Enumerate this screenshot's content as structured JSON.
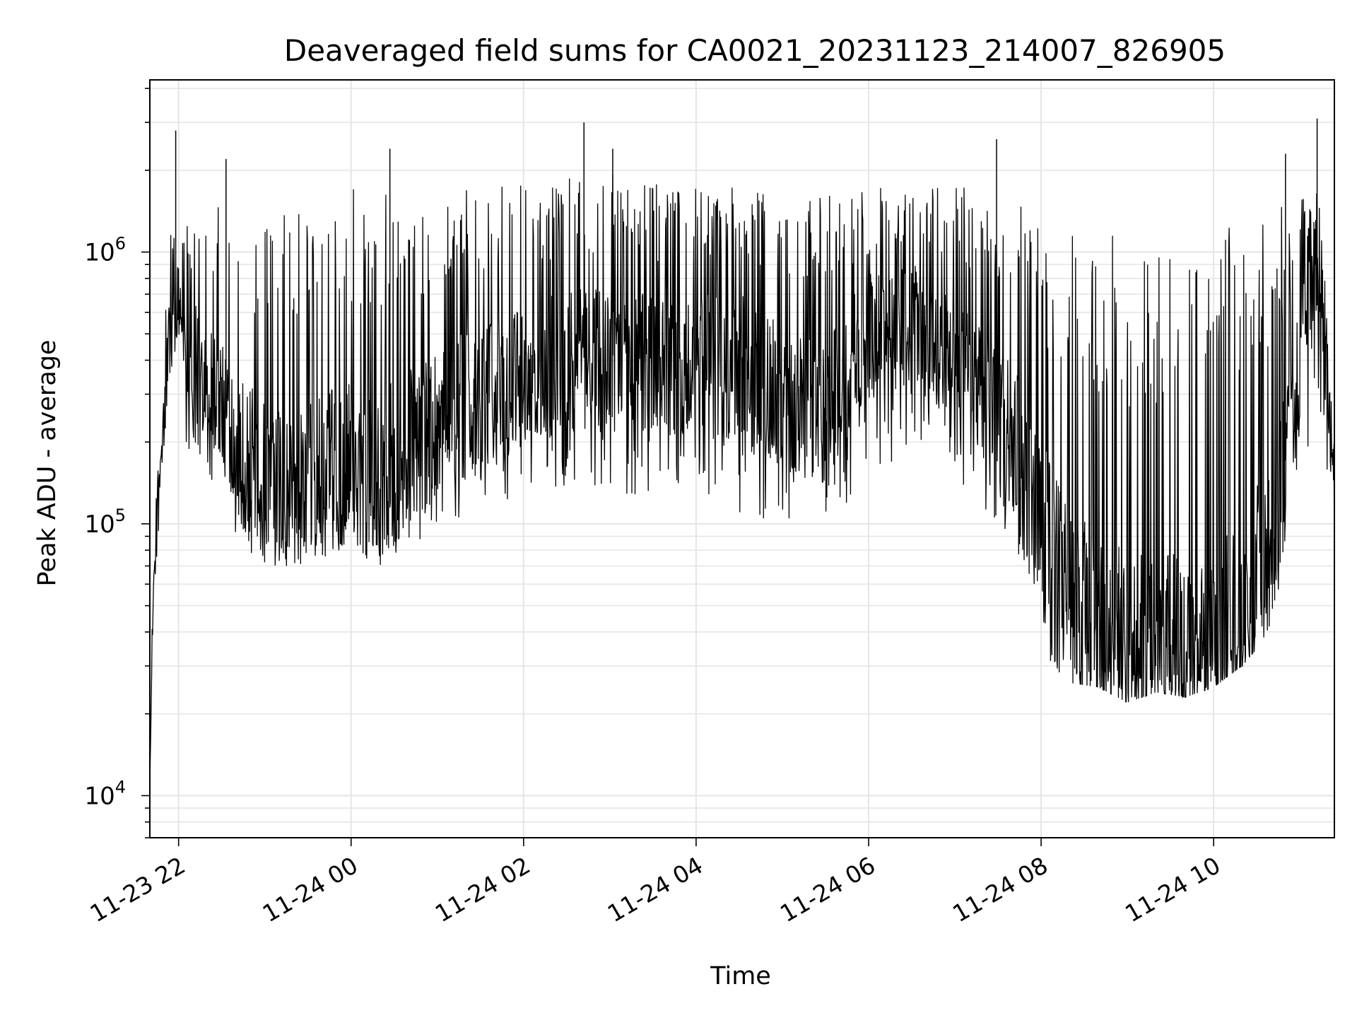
{
  "chart_data": {
    "type": "line",
    "title": "Deaveraged field sums for CA0021_20231123_214007_826905",
    "xlabel": "Time",
    "ylabel": "Peak ADU - average",
    "yscale": "log",
    "ylim": [
      7000,
      4300000
    ],
    "xlim": [
      "2023-11-23 21:40",
      "2023-11-24 11:24"
    ],
    "grid": true,
    "line_color": "#000000",
    "grid_color": "#e5e5e5",
    "x_ticks": [
      {
        "value": "2023-11-23 22:00",
        "label": "11-23 22"
      },
      {
        "value": "2023-11-24 00:00",
        "label": "11-24 00"
      },
      {
        "value": "2023-11-24 02:00",
        "label": "11-24 02"
      },
      {
        "value": "2023-11-24 04:00",
        "label": "11-24 04"
      },
      {
        "value": "2023-11-24 06:00",
        "label": "11-24 06"
      },
      {
        "value": "2023-11-24 08:00",
        "label": "11-24 08"
      },
      {
        "value": "2023-11-24 10:00",
        "label": "11-24 10"
      }
    ],
    "y_ticks": [
      {
        "value": 10000,
        "base": "10",
        "exp": "4"
      },
      {
        "value": 100000,
        "base": "10",
        "exp": "5"
      },
      {
        "value": 1000000,
        "base": "10",
        "exp": "6"
      }
    ],
    "series": [
      {
        "x": [
          "2023-11-23 21:40",
          "2023-11-23 21:42",
          "2023-11-23 21:45",
          "2023-11-23 21:48",
          "2023-11-23 21:52",
          "2023-11-23 21:55",
          "2023-11-23 21:58",
          "2023-11-23 22:05",
          "2023-11-23 22:15",
          "2023-11-23 22:30",
          "2023-11-23 22:45",
          "2023-11-23 23:00",
          "2023-11-23 23:20",
          "2023-11-23 23:40",
          "2023-11-24 00:00",
          "2023-11-24 00:20",
          "2023-11-24 00:40",
          "2023-11-24 01:00",
          "2023-11-24 01:30",
          "2023-11-24 02:00",
          "2023-11-24 02:30",
          "2023-11-24 03:00",
          "2023-11-24 03:30",
          "2023-11-24 04:00",
          "2023-11-24 04:30",
          "2023-11-24 05:00",
          "2023-11-24 05:30",
          "2023-11-24 06:00",
          "2023-11-24 06:30",
          "2023-11-24 07:00",
          "2023-11-24 07:30",
          "2023-11-24 07:50",
          "2023-11-24 08:05",
          "2023-11-24 08:20",
          "2023-11-24 08:40",
          "2023-11-24 09:00",
          "2023-11-24 09:20",
          "2023-11-24 09:40",
          "2023-11-24 10:00",
          "2023-11-24 10:20",
          "2023-11-24 10:40",
          "2023-11-24 10:55",
          "2023-11-24 11:05",
          "2023-11-24 11:12",
          "2023-11-24 11:18",
          "2023-11-24 11:24"
        ],
        "y": [
          11000,
          45000,
          120000,
          170000,
          350000,
          600000,
          700000,
          500000,
          380000,
          300000,
          180000,
          140000,
          120000,
          150000,
          170000,
          150000,
          190000,
          250000,
          280000,
          350000,
          400000,
          420000,
          380000,
          400000,
          380000,
          300000,
          250000,
          500000,
          550000,
          400000,
          250000,
          150000,
          80000,
          50000,
          40000,
          35000,
          33000,
          32000,
          35000,
          45000,
          80000,
          250000,
          600000,
          900000,
          400000,
          130000
        ],
        "lower": [
          11000,
          40000,
          80000,
          100000,
          180000,
          250000,
          250000,
          180000,
          150000,
          120000,
          80000,
          70000,
          70000,
          75000,
          80000,
          70000,
          80000,
          100000,
          110000,
          120000,
          130000,
          130000,
          120000,
          120000,
          110000,
          100000,
          90000,
          150000,
          180000,
          150000,
          90000,
          60000,
          30000,
          26000,
          25000,
          22000,
          24000,
          23000,
          25000,
          30000,
          40000,
          100000,
          150000,
          200000,
          120000,
          55000
        ],
        "upper": [
          11000,
          60000,
          150000,
          200000,
          1200000,
          1400000,
          1100000,
          1300000,
          1500000,
          1600000,
          1500000,
          1600000,
          1600000,
          1700000,
          1800000,
          1700000,
          1700000,
          1700000,
          1700000,
          1800000,
          1900000,
          2000000,
          1800000,
          1800000,
          1800000,
          1600000,
          1700000,
          1700000,
          1800000,
          1800000,
          1700000,
          1500000,
          1300000,
          1200000,
          1200000,
          1100000,
          1100000,
          1200000,
          1200000,
          1300000,
          1500000,
          1600000,
          1800000,
          2200000,
          700000,
          200000
        ],
        "spikes": [
          {
            "x": "2023-11-23 21:58",
            "y": 2800000
          },
          {
            "x": "2023-11-23 22:33",
            "y": 2200000
          },
          {
            "x": "2023-11-24 00:27",
            "y": 2400000
          },
          {
            "x": "2023-11-24 02:42",
            "y": 3000000
          },
          {
            "x": "2023-11-24 03:02",
            "y": 2400000
          },
          {
            "x": "2023-11-24 07:29",
            "y": 2600000
          },
          {
            "x": "2023-11-24 10:50",
            "y": 2300000
          },
          {
            "x": "2023-11-24 11:12",
            "y": 3100000
          }
        ]
      }
    ]
  }
}
